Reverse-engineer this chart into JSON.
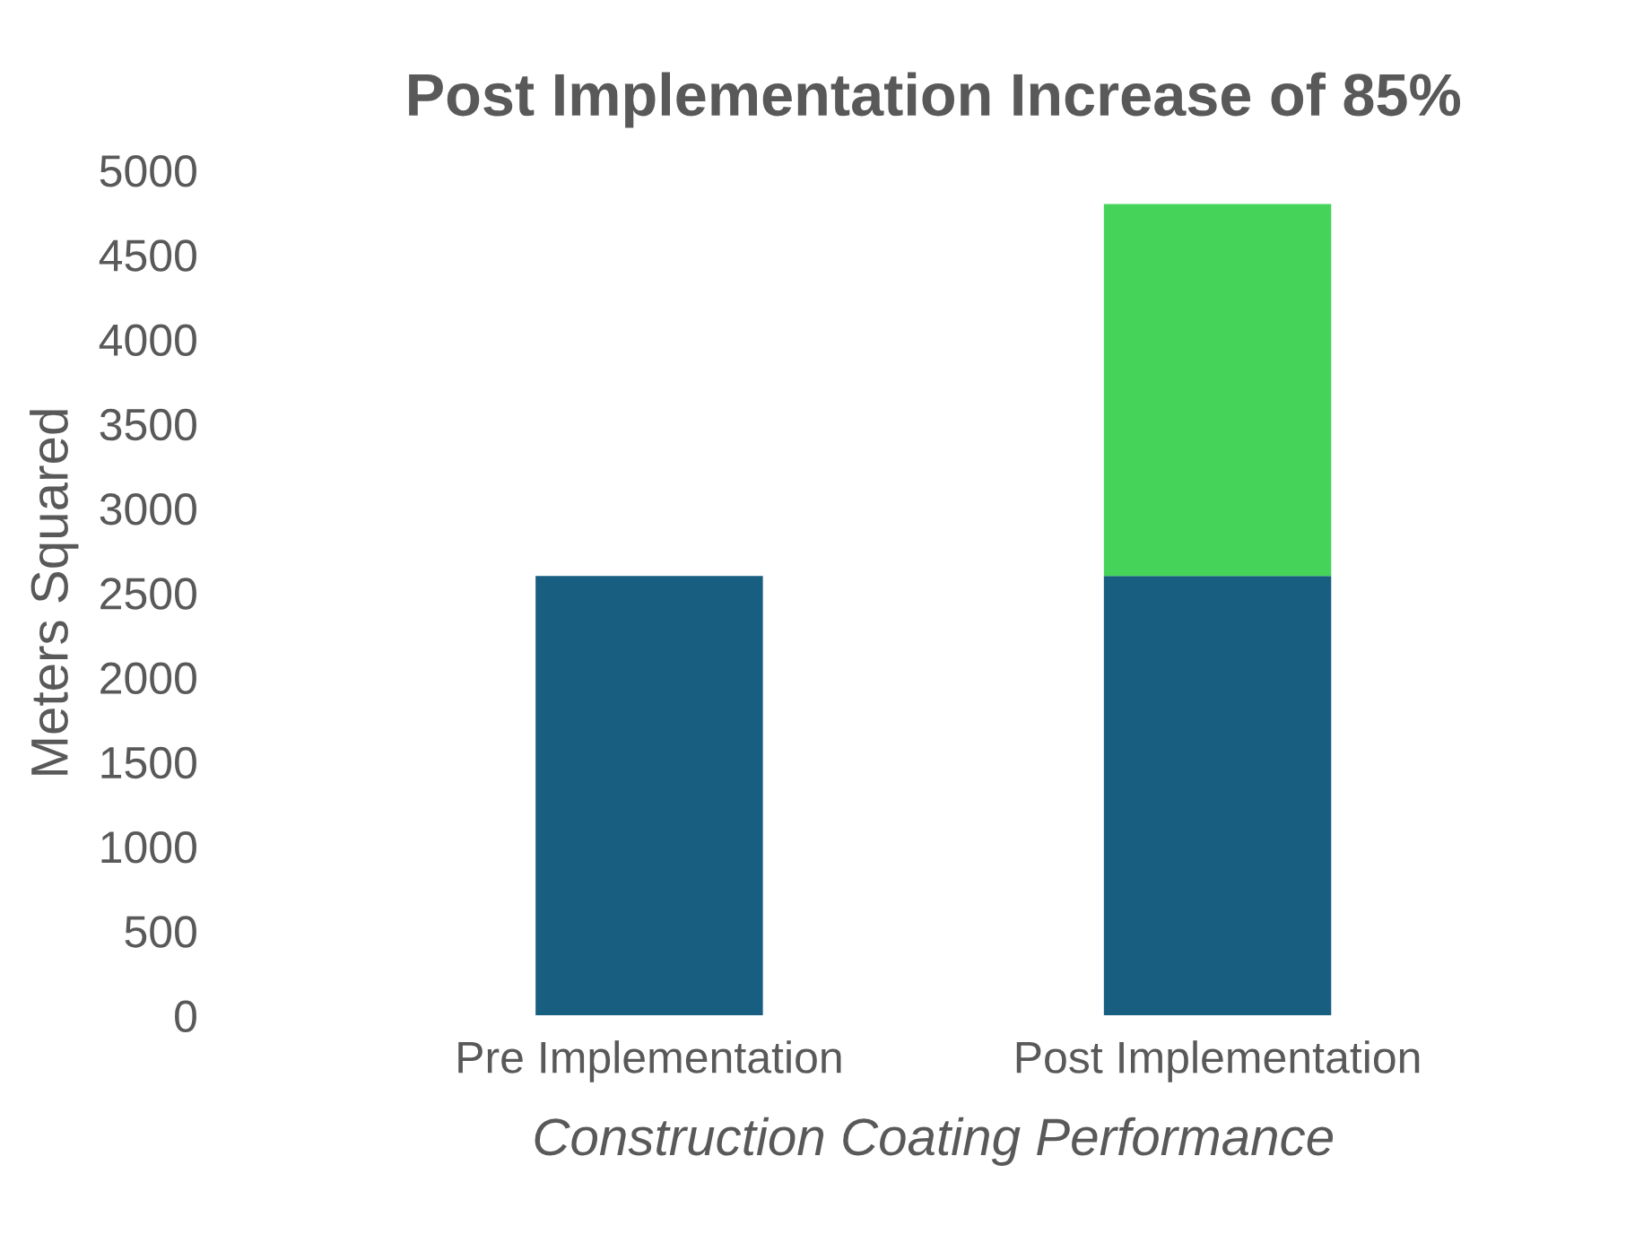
{
  "chart_data": {
    "type": "bar",
    "title": "Post Implementation Increase of 85%",
    "xlabel": "Construction Coating Performance",
    "ylabel": "Meters Squared",
    "categories": [
      "Pre Implementation",
      "Post Implementation"
    ],
    "stacked": true,
    "series": [
      {
        "color": "#175e80",
        "values": [
          2600,
          2600
        ]
      },
      {
        "color": "#45d35a",
        "values": [
          null,
          2200
        ]
      }
    ],
    "ylim": [
      0,
      5000
    ],
    "yticks": [
      0,
      500,
      1000,
      1500,
      2000,
      2500,
      3000,
      3500,
      4000,
      4500,
      5000
    ],
    "grid": false,
    "legend": false
  }
}
